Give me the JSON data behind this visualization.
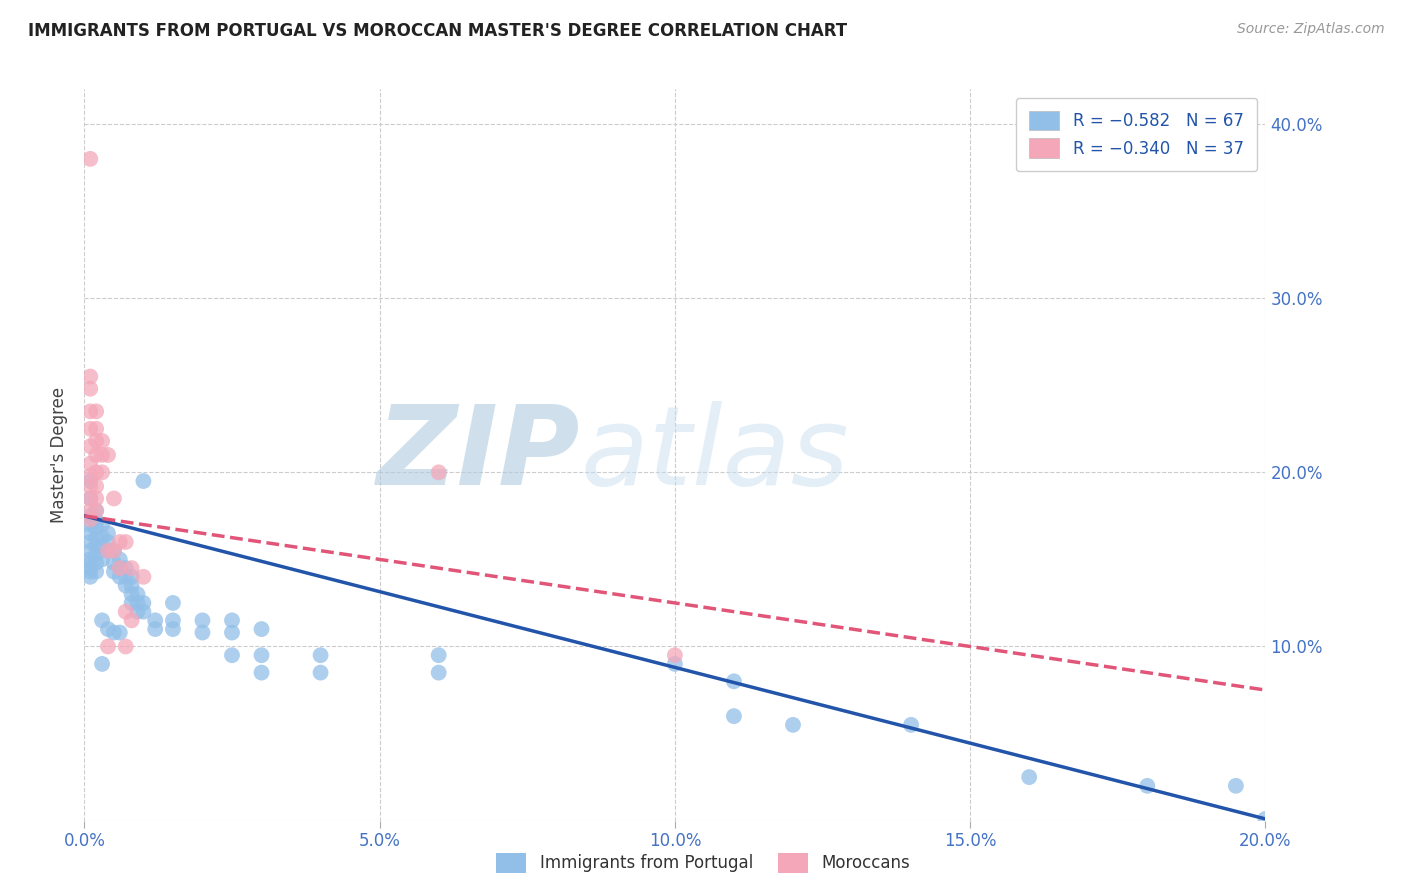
{
  "title": "IMMIGRANTS FROM PORTUGAL VS MOROCCAN MASTER'S DEGREE CORRELATION CHART",
  "source": "Source: ZipAtlas.com",
  "ylabel": "Master's Degree",
  "xlim": [
    0.0,
    0.2
  ],
  "ylim": [
    0.0,
    0.42
  ],
  "xticks": [
    0.0,
    0.05,
    0.1,
    0.15,
    0.2
  ],
  "yticks": [
    0.0,
    0.1,
    0.2,
    0.3,
    0.4
  ],
  "xtick_labels": [
    "0.0%",
    "5.0%",
    "10.0%",
    "15.0%",
    "20.0%"
  ],
  "ytick_labels": [
    "",
    "10.0%",
    "20.0%",
    "30.0%",
    "40.0%"
  ],
  "blue_color": "#92bfe8",
  "pink_color": "#f4a7b9",
  "blue_line_color": "#2255aa",
  "pink_line_color": "#e05578",
  "tick_color": "#4472c4",
  "watermark1": "ZIP",
  "watermark2": "atlas",
  "watermark_color1": "#b8cfe8",
  "watermark_color2": "#b8cfe8",
  "blue_scatter": [
    [
      0.001,
      0.195
    ],
    [
      0.001,
      0.185
    ],
    [
      0.001,
      0.175
    ],
    [
      0.001,
      0.17
    ],
    [
      0.001,
      0.165
    ],
    [
      0.001,
      0.16
    ],
    [
      0.001,
      0.155
    ],
    [
      0.001,
      0.15
    ],
    [
      0.001,
      0.148
    ],
    [
      0.001,
      0.145
    ],
    [
      0.001,
      0.143
    ],
    [
      0.001,
      0.14
    ],
    [
      0.002,
      0.178
    ],
    [
      0.002,
      0.172
    ],
    [
      0.002,
      0.168
    ],
    [
      0.002,
      0.162
    ],
    [
      0.002,
      0.158
    ],
    [
      0.002,
      0.153
    ],
    [
      0.002,
      0.148
    ],
    [
      0.002,
      0.143
    ],
    [
      0.003,
      0.17
    ],
    [
      0.003,
      0.163
    ],
    [
      0.003,
      0.157
    ],
    [
      0.003,
      0.15
    ],
    [
      0.003,
      0.115
    ],
    [
      0.003,
      0.09
    ],
    [
      0.004,
      0.165
    ],
    [
      0.004,
      0.16
    ],
    [
      0.004,
      0.155
    ],
    [
      0.004,
      0.11
    ],
    [
      0.005,
      0.155
    ],
    [
      0.005,
      0.148
    ],
    [
      0.005,
      0.143
    ],
    [
      0.005,
      0.108
    ],
    [
      0.006,
      0.15
    ],
    [
      0.006,
      0.145
    ],
    [
      0.006,
      0.14
    ],
    [
      0.006,
      0.108
    ],
    [
      0.007,
      0.145
    ],
    [
      0.007,
      0.14
    ],
    [
      0.007,
      0.135
    ],
    [
      0.008,
      0.14
    ],
    [
      0.008,
      0.135
    ],
    [
      0.008,
      0.13
    ],
    [
      0.008,
      0.125
    ],
    [
      0.009,
      0.13
    ],
    [
      0.009,
      0.125
    ],
    [
      0.009,
      0.12
    ],
    [
      0.01,
      0.195
    ],
    [
      0.01,
      0.125
    ],
    [
      0.01,
      0.12
    ],
    [
      0.012,
      0.115
    ],
    [
      0.012,
      0.11
    ],
    [
      0.015,
      0.125
    ],
    [
      0.015,
      0.115
    ],
    [
      0.015,
      0.11
    ],
    [
      0.02,
      0.115
    ],
    [
      0.02,
      0.108
    ],
    [
      0.025,
      0.115
    ],
    [
      0.025,
      0.108
    ],
    [
      0.025,
      0.095
    ],
    [
      0.03,
      0.11
    ],
    [
      0.03,
      0.095
    ],
    [
      0.03,
      0.085
    ],
    [
      0.04,
      0.095
    ],
    [
      0.04,
      0.085
    ],
    [
      0.06,
      0.095
    ],
    [
      0.06,
      0.085
    ],
    [
      0.1,
      0.09
    ],
    [
      0.11,
      0.08
    ],
    [
      0.11,
      0.06
    ],
    [
      0.12,
      0.055
    ],
    [
      0.14,
      0.055
    ],
    [
      0.16,
      0.025
    ],
    [
      0.18,
      0.02
    ],
    [
      0.195,
      0.02
    ],
    [
      0.2,
      0.001
    ]
  ],
  "pink_scatter": [
    [
      0.001,
      0.38
    ],
    [
      0.001,
      0.255
    ],
    [
      0.001,
      0.248
    ],
    [
      0.001,
      0.235
    ],
    [
      0.001,
      0.225
    ],
    [
      0.001,
      0.215
    ],
    [
      0.001,
      0.205
    ],
    [
      0.001,
      0.198
    ],
    [
      0.001,
      0.192
    ],
    [
      0.001,
      0.185
    ],
    [
      0.001,
      0.178
    ],
    [
      0.001,
      0.173
    ],
    [
      0.002,
      0.235
    ],
    [
      0.002,
      0.225
    ],
    [
      0.002,
      0.218
    ],
    [
      0.002,
      0.21
    ],
    [
      0.002,
      0.2
    ],
    [
      0.002,
      0.192
    ],
    [
      0.002,
      0.185
    ],
    [
      0.002,
      0.178
    ],
    [
      0.003,
      0.218
    ],
    [
      0.003,
      0.21
    ],
    [
      0.003,
      0.2
    ],
    [
      0.004,
      0.21
    ],
    [
      0.004,
      0.155
    ],
    [
      0.004,
      0.1
    ],
    [
      0.005,
      0.185
    ],
    [
      0.005,
      0.155
    ],
    [
      0.006,
      0.16
    ],
    [
      0.006,
      0.145
    ],
    [
      0.007,
      0.16
    ],
    [
      0.007,
      0.12
    ],
    [
      0.007,
      0.1
    ],
    [
      0.008,
      0.145
    ],
    [
      0.008,
      0.115
    ],
    [
      0.01,
      0.14
    ],
    [
      0.06,
      0.2
    ],
    [
      0.1,
      0.095
    ]
  ],
  "blue_line_y0": 0.175,
  "blue_line_y1": 0.001,
  "pink_line_y0": 0.175,
  "pink_line_y1": 0.075
}
